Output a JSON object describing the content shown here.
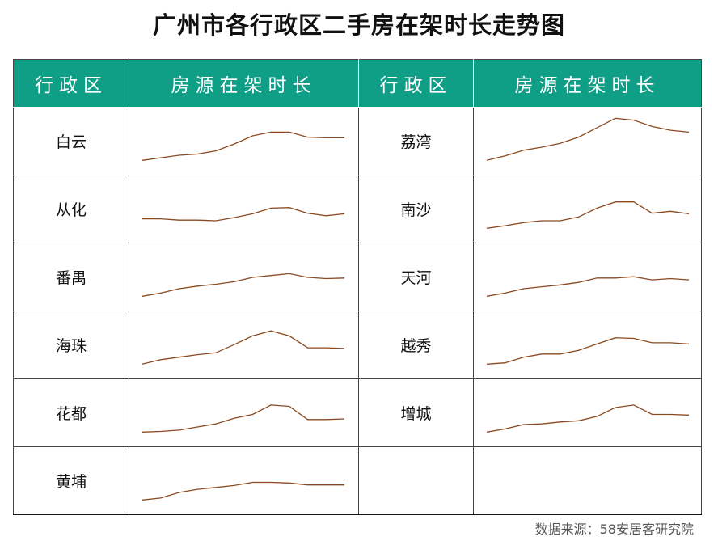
{
  "title": "广州市各行政区二手房在架时长走势图",
  "headers": {
    "district": "行政区",
    "trend": "房源在架时长"
  },
  "source": "数据来源：58安居客研究院",
  "line_color": "#8b4a20",
  "header_color": "#0f9e86",
  "chart_data": {
    "type": "line",
    "subtype": "sparkline-table",
    "title": "广州市各行政区二手房在架时长走势图",
    "xlabel": "",
    "ylabel": "",
    "points_per_series": 12,
    "series": [
      {
        "name": "白云",
        "values": [
          2.0,
          2.8,
          3.6,
          4.0,
          5.0,
          7.2,
          9.8,
          11.0,
          11.0,
          9.4,
          9.2,
          9.2
        ]
      },
      {
        "name": "从化",
        "values": [
          5.0,
          5.0,
          4.6,
          4.6,
          4.4,
          5.4,
          6.6,
          8.4,
          8.6,
          6.8,
          6.0,
          6.6
        ]
      },
      {
        "name": "番禺",
        "values": [
          2.0,
          3.0,
          4.4,
          5.2,
          5.8,
          6.6,
          8.0,
          8.6,
          9.2,
          8.0,
          7.6,
          7.8
        ]
      },
      {
        "name": "海珠",
        "values": [
          2.0,
          3.4,
          4.2,
          5.0,
          5.6,
          8.2,
          11.0,
          12.6,
          11.0,
          7.2,
          7.2,
          7.0
        ]
      },
      {
        "name": "花都",
        "values": [
          2.0,
          2.2,
          2.6,
          3.6,
          4.6,
          6.4,
          7.6,
          10.6,
          10.2,
          6.0,
          6.0,
          6.2
        ]
      },
      {
        "name": "黄埔",
        "values": [
          2.0,
          2.6,
          4.4,
          5.4,
          6.0,
          6.6,
          7.6,
          7.6,
          7.4,
          6.8,
          6.8,
          6.8
        ]
      },
      {
        "name": "荔湾",
        "values": [
          2.0,
          3.4,
          5.2,
          6.2,
          7.4,
          9.4,
          12.4,
          15.4,
          14.8,
          12.8,
          11.6,
          11.0
        ]
      },
      {
        "name": "南沙",
        "values": [
          2.0,
          2.8,
          3.8,
          4.4,
          4.4,
          5.6,
          8.4,
          10.4,
          10.4,
          6.8,
          7.4,
          6.6
        ]
      },
      {
        "name": "天河",
        "values": [
          2.0,
          3.0,
          4.4,
          5.0,
          5.6,
          6.4,
          7.8,
          7.8,
          8.2,
          7.2,
          7.6,
          7.2
        ]
      },
      {
        "name": "越秀",
        "values": [
          2.0,
          2.4,
          4.2,
          5.2,
          5.2,
          6.4,
          8.4,
          10.4,
          10.2,
          8.8,
          8.8,
          8.4
        ]
      },
      {
        "name": "增城",
        "values": [
          2.0,
          3.0,
          4.4,
          4.6,
          5.2,
          5.6,
          7.0,
          9.8,
          10.6,
          7.6,
          7.6,
          7.4
        ]
      }
    ]
  },
  "rows": [
    {
      "left": 0,
      "right": 6
    },
    {
      "left": 1,
      "right": 7
    },
    {
      "left": 2,
      "right": 8
    },
    {
      "left": 3,
      "right": 9
    },
    {
      "left": 4,
      "right": 10
    },
    {
      "left": 5,
      "right": null
    }
  ]
}
